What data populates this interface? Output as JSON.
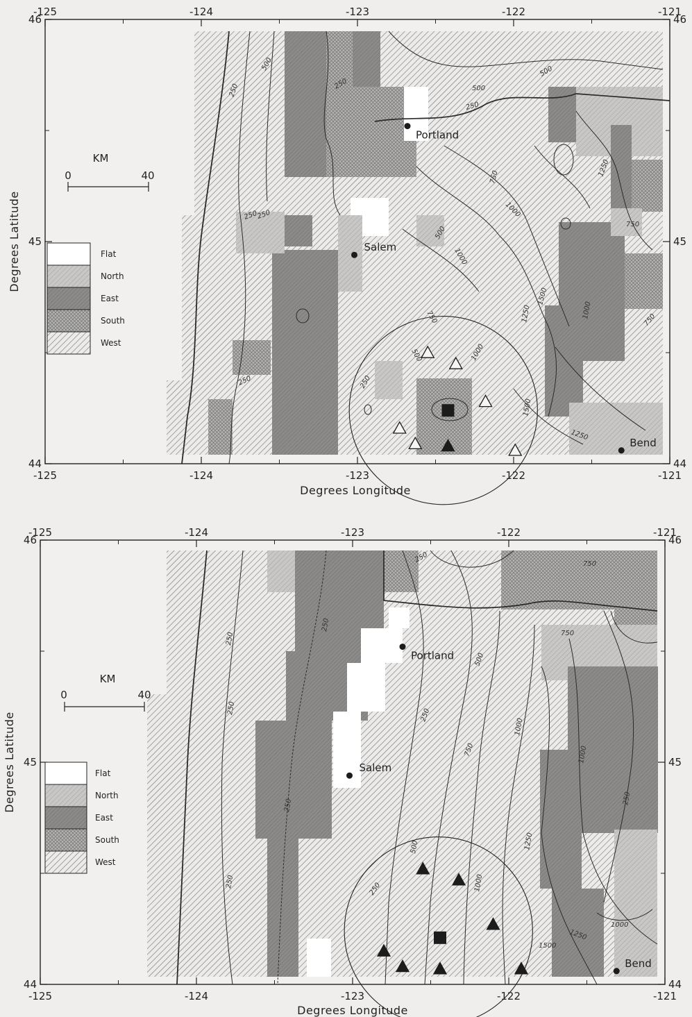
{
  "axes": {
    "xlabel": "Degrees Longitude",
    "ylabel": "Degrees Latitude",
    "x_ticks": [
      "-125",
      "-124",
      "-123",
      "-122",
      "-121"
    ],
    "y_ticks": [
      "44",
      "45",
      "46"
    ],
    "xlim": [
      -125,
      -121
    ],
    "ylim": [
      44,
      46
    ]
  },
  "legend": {
    "items": [
      {
        "label": "Flat",
        "pattern": "flat"
      },
      {
        "label": "North",
        "pattern": "north"
      },
      {
        "label": "East",
        "pattern": "east"
      },
      {
        "label": "South",
        "pattern": "south"
      },
      {
        "label": "West",
        "pattern": "west"
      }
    ]
  },
  "scale_bar": {
    "title": "KM",
    "start": "0",
    "end": "40"
  },
  "cities": [
    {
      "name": "Portland",
      "lon": -122.68,
      "lat": 45.52
    },
    {
      "name": "Salem",
      "lon": -123.02,
      "lat": 44.94
    },
    {
      "name": "Bend",
      "lon": -121.31,
      "lat": 44.06
    }
  ],
  "maps": [
    {
      "id": "top",
      "contour_labels": [
        "250",
        "500",
        "750",
        "1000",
        "1250",
        "1500"
      ],
      "stations": [
        {
          "lon": -122.55,
          "lat": 44.5,
          "filled": false
        },
        {
          "lon": -122.37,
          "lat": 44.45,
          "filled": false
        },
        {
          "lon": -122.18,
          "lat": 44.28,
          "filled": false
        },
        {
          "lon": -122.73,
          "lat": 44.16,
          "filled": false
        },
        {
          "lon": -122.63,
          "lat": 44.09,
          "filled": false
        },
        {
          "lon": -122.42,
          "lat": 44.08,
          "filled": true
        },
        {
          "lon": -121.99,
          "lat": 44.06,
          "filled": false
        }
      ],
      "site": {
        "lon": -122.42,
        "lat": 44.24
      },
      "circle_center": {
        "lon": -122.45,
        "lat": 44.24
      }
    },
    {
      "id": "bottom",
      "contour_labels": [
        "250",
        "500",
        "750",
        "1000",
        "1250",
        "1500"
      ],
      "stations": [
        {
          "lon": -122.55,
          "lat": 44.52,
          "filled": true
        },
        {
          "lon": -122.32,
          "lat": 44.47,
          "filled": true
        },
        {
          "lon": -122.1,
          "lat": 44.27,
          "filled": true
        },
        {
          "lon": -122.8,
          "lat": 44.15,
          "filled": true
        },
        {
          "lon": -122.68,
          "lat": 44.08,
          "filled": true
        },
        {
          "lon": -122.44,
          "lat": 44.07,
          "filled": true
        },
        {
          "lon": -121.92,
          "lat": 44.07,
          "filled": true
        }
      ],
      "site": {
        "lon": -122.44,
        "lat": 44.21
      },
      "circle_center": {
        "lon": -122.45,
        "lat": 44.24
      }
    }
  ]
}
